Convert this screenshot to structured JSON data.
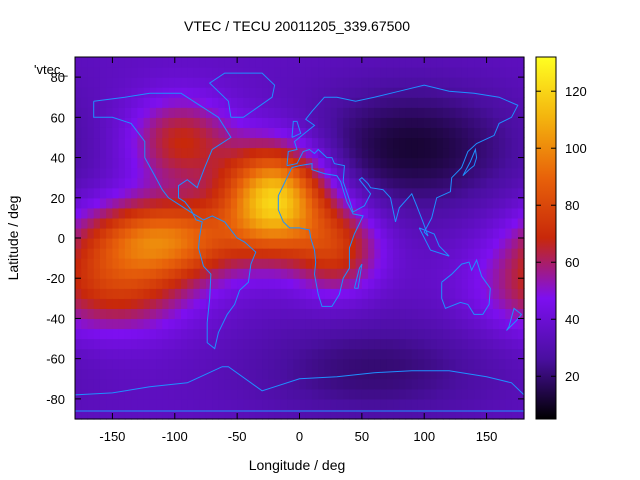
{
  "chart_data": {
    "type": "heatmap",
    "title": "VTEC / TECU 20011205_339.67500",
    "xlabel": "Longitude / deg",
    "ylabel": "Latitude / deg",
    "series_tag": "'vtec_",
    "xlim": [
      -180,
      180
    ],
    "ylim": [
      -90,
      90
    ],
    "x_ticks": [
      -150,
      -100,
      -50,
      0,
      50,
      100,
      150
    ],
    "y_ticks": [
      -80,
      -60,
      -40,
      -20,
      0,
      20,
      40,
      60,
      80
    ],
    "colorbar": {
      "range": [
        5,
        132
      ],
      "ticks": [
        20,
        40,
        60,
        80,
        100,
        120
      ],
      "palette": [
        "#000000",
        "#4a0fa0",
        "#7d0ff0",
        "#c8280a",
        "#e8620a",
        "#f4b40e",
        "#ffff22"
      ]
    },
    "grid_step_deg": 5,
    "field": {
      "background_vtec": 35,
      "features": [
        {
          "name": "equatorial anomaly crest west",
          "lon": -110,
          "lat": 0,
          "peak_vtec": 92
        },
        {
          "name": "equatorial anomaly crest central",
          "lon": -20,
          "lat": 20,
          "peak_vtec": 118
        },
        {
          "name": "subtropical band",
          "lon": -150,
          "lat": -25,
          "peak_vtec": 70
        },
        {
          "name": "north america mid latitude",
          "lon": -95,
          "lat": 48,
          "peak_vtec": 68
        },
        {
          "name": "africa equatorial",
          "lon": 30,
          "lat": -5,
          "peak_vtec": 72
        },
        {
          "name": "polar trough north",
          "lon": 90,
          "lat": 45,
          "peak_vtec": 12
        },
        {
          "name": "polar trough south",
          "lon": 60,
          "lat": -65,
          "peak_vtec": 20
        }
      ]
    },
    "grid": false,
    "legend_placement": "right colorbar"
  }
}
